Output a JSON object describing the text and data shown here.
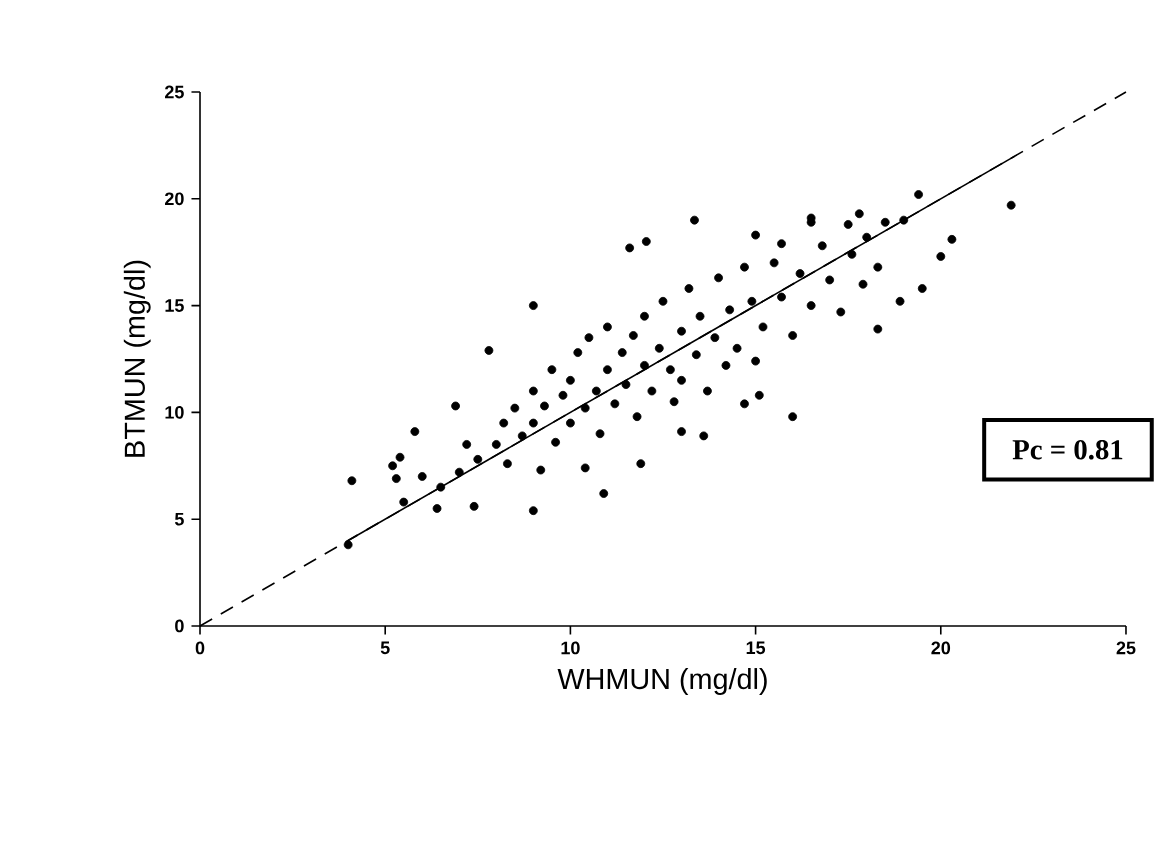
{
  "chart_data": {
    "type": "scatter",
    "xlabel": "WHMUN (mg/dl)",
    "ylabel": "BTMUN (mg/dl)",
    "xlim": [
      0,
      25
    ],
    "ylim": [
      0,
      25
    ],
    "xticks": [
      0,
      5,
      10,
      15,
      20,
      25
    ],
    "yticks": [
      0,
      5,
      10,
      15,
      20,
      25
    ],
    "grid": false,
    "annotations": [
      "Pc = 0.81"
    ],
    "series": [
      {
        "color": "#000000",
        "marker": "circle",
        "x": [
          4.0,
          4.1,
          5.5,
          5.2,
          5.8,
          6.9,
          7.8,
          9.0,
          11.6,
          12.05,
          13.35,
          10.9,
          9.0,
          16.0,
          13.6,
          13.0,
          11.9,
          10.4,
          5.4,
          5.3,
          6.4,
          7.4,
          15.1,
          14.7,
          15.0,
          15.7,
          16.5,
          21.9,
          20.3,
          20.0,
          19.5,
          18.9,
          18.3,
          17.9,
          18.3,
          19.4,
          17.8,
          16.5,
          17.5,
          7.5,
          8.0,
          8.2,
          8.5,
          8.7,
          9.0,
          9.0,
          9.3,
          9.5,
          9.6,
          9.8,
          10.0,
          10.0,
          10.2,
          10.4,
          10.5,
          10.7,
          10.8,
          11.0,
          11.0,
          11.2,
          11.4,
          11.5,
          11.7,
          11.8,
          12.0,
          12.0,
          12.2,
          12.4,
          12.5,
          12.7,
          12.8,
          13.0,
          13.0,
          13.2,
          13.4,
          13.5,
          13.7,
          13.9,
          14.0,
          14.2,
          14.3,
          14.5,
          14.7,
          14.9,
          15.0,
          15.2,
          15.5,
          15.7,
          16.0,
          16.2,
          16.5,
          16.8,
          17.0,
          17.3,
          17.6,
          18.0,
          18.5,
          19.0,
          7.0,
          6.5,
          8.3,
          9.2,
          6.0,
          7.2
        ],
        "values": [
          3.8,
          6.8,
          5.8,
          7.5,
          9.1,
          10.3,
          12.9,
          15.0,
          17.7,
          18.0,
          19.0,
          6.2,
          5.4,
          9.8,
          8.9,
          9.1,
          7.6,
          7.4,
          7.9,
          6.9,
          5.5,
          5.6,
          10.8,
          10.4,
          18.3,
          17.9,
          19.1,
          19.7,
          18.1,
          17.3,
          15.8,
          15.2,
          13.9,
          16.0,
          16.8,
          20.2,
          19.3,
          18.9,
          18.8,
          7.8,
          8.5,
          9.5,
          10.2,
          8.9,
          9.5,
          11.0,
          10.3,
          12.0,
          8.6,
          10.8,
          9.5,
          11.5,
          12.8,
          10.2,
          13.5,
          11.0,
          9.0,
          12.0,
          14.0,
          10.4,
          12.8,
          11.3,
          13.6,
          9.8,
          12.2,
          14.5,
          11.0,
          13.0,
          15.2,
          12.0,
          10.5,
          13.8,
          11.5,
          15.8,
          12.7,
          14.5,
          11.0,
          13.5,
          16.3,
          12.2,
          14.8,
          13.0,
          16.8,
          15.2,
          12.4,
          14.0,
          17.0,
          15.4,
          13.6,
          16.5,
          15.0,
          17.8,
          16.2,
          14.7,
          17.4,
          18.2,
          18.9,
          19.0,
          7.2,
          6.5,
          7.6,
          7.3,
          7.0,
          8.5
        ]
      },
      {
        "type": "line",
        "color": "#000000",
        "line_style": "dashed",
        "marker": "none",
        "x": [
          0,
          25
        ],
        "values": [
          0,
          25
        ]
      },
      {
        "type": "line",
        "color": "#000000",
        "line_style": "solid",
        "marker": "none",
        "x": [
          4,
          22
        ],
        "values": [
          4,
          22
        ]
      }
    ]
  }
}
